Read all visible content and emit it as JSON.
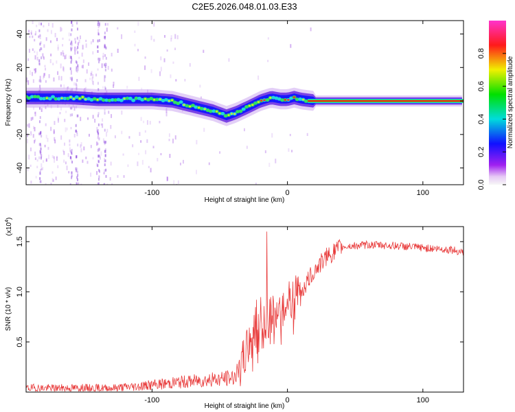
{
  "title": "C2E5.2026.048.01.03.E33",
  "chart_data": [
    {
      "type": "heatmap",
      "xlabel": "Height of straight line (km)",
      "ylabel": "Frequency (Hz)",
      "xlim": [
        -193,
        130
      ],
      "ylim": [
        -50,
        48
      ],
      "xticks": [
        -100,
        0,
        100
      ],
      "xtick_labels": [
        "-100",
        "0",
        "100"
      ],
      "yticks": [
        -40,
        -20,
        0,
        20,
        40
      ],
      "ytick_labels": [
        "-40",
        "-20",
        "0",
        "20",
        "40"
      ],
      "ridge": {
        "x": [
          -193,
          -175,
          -160,
          -140,
          -120,
          -100,
          -85,
          -70,
          -55,
          -45,
          -38,
          -30,
          -20,
          -12,
          -5,
          0,
          5,
          10,
          20,
          130
        ],
        "y": [
          2,
          2,
          2,
          1,
          1,
          1,
          0,
          -3,
          -6,
          -9,
          -7,
          -4,
          0,
          2,
          1,
          1,
          2,
          1,
          0,
          0
        ]
      },
      "colorbar": {
        "label": "Normalized spectral amplitude",
        "range": [
          0,
          1
        ],
        "ticks": [
          0.0,
          0.2,
          0.4,
          0.6,
          0.8
        ],
        "tick_labels": [
          "0.0",
          "0.2",
          "0.4",
          "0.6",
          "0.8"
        ],
        "colormap": "rainbow (purple-blue-cyan-green-yellow-red-magenta)"
      }
    },
    {
      "type": "line",
      "xlabel": "Height of straight line (km)",
      "ylabel": "SNR (10 * v/v)",
      "scale_note": "(x10^4)",
      "xlim": [
        -193,
        130
      ],
      "ylim": [
        0,
        1.65
      ],
      "xticks": [
        -100,
        0,
        100
      ],
      "xtick_labels": [
        "-100",
        "0",
        "100"
      ],
      "yticks": [
        0.5,
        1.0,
        1.5
      ],
      "ytick_labels": [
        "0.5",
        "1.0",
        "1.5"
      ],
      "color": "#e83a3a",
      "x": [
        -193,
        -160,
        -130,
        -120,
        -100,
        -80,
        -60,
        -50,
        -40,
        -35,
        -30,
        -25,
        -20,
        -15,
        -10,
        -5,
        0,
        10,
        20,
        30,
        40,
        60,
        80,
        100,
        120,
        130
      ],
      "y": [
        0.04,
        0.04,
        0.04,
        0.05,
        0.07,
        0.1,
        0.12,
        0.13,
        0.15,
        0.22,
        0.42,
        0.55,
        0.6,
        0.72,
        0.82,
        0.85,
        0.88,
        1.0,
        1.22,
        1.36,
        1.45,
        1.47,
        1.46,
        1.44,
        1.42,
        1.4
      ]
    }
  ]
}
